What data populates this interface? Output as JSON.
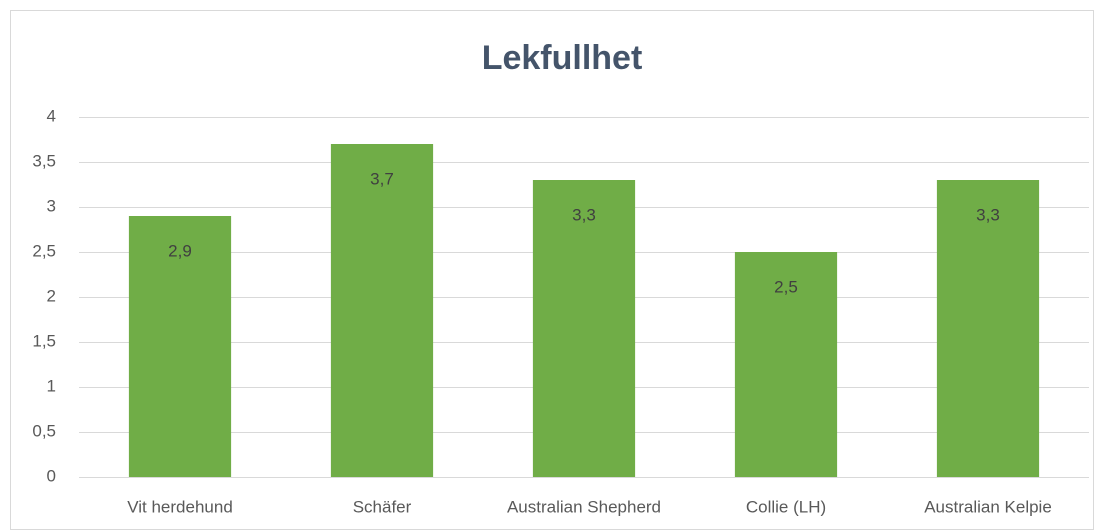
{
  "chart_data": {
    "type": "bar",
    "title": "Lekfullhet",
    "categories": [
      "Vit herdehund",
      "Schäfer",
      "Australian Shepherd",
      "Collie (LH)",
      "Australian Kelpie"
    ],
    "values": [
      2.9,
      3.7,
      3.3,
      2.5,
      3.3
    ],
    "value_labels": [
      "2,9",
      "3,7",
      "3,3",
      "2,5",
      "3,3"
    ],
    "color": "#70ad47",
    "ylim": [
      0,
      4
    ],
    "yticks": [
      0,
      {
        "value": 0.5,
        "label": "0,5"
      },
      1,
      {
        "value": 1.5,
        "label": "1,5"
      },
      2,
      {
        "value": 2.5,
        "label": "2,5"
      },
      3,
      {
        "value": 3.5,
        "label": "3,5"
      },
      4
    ],
    "grid": true
  }
}
